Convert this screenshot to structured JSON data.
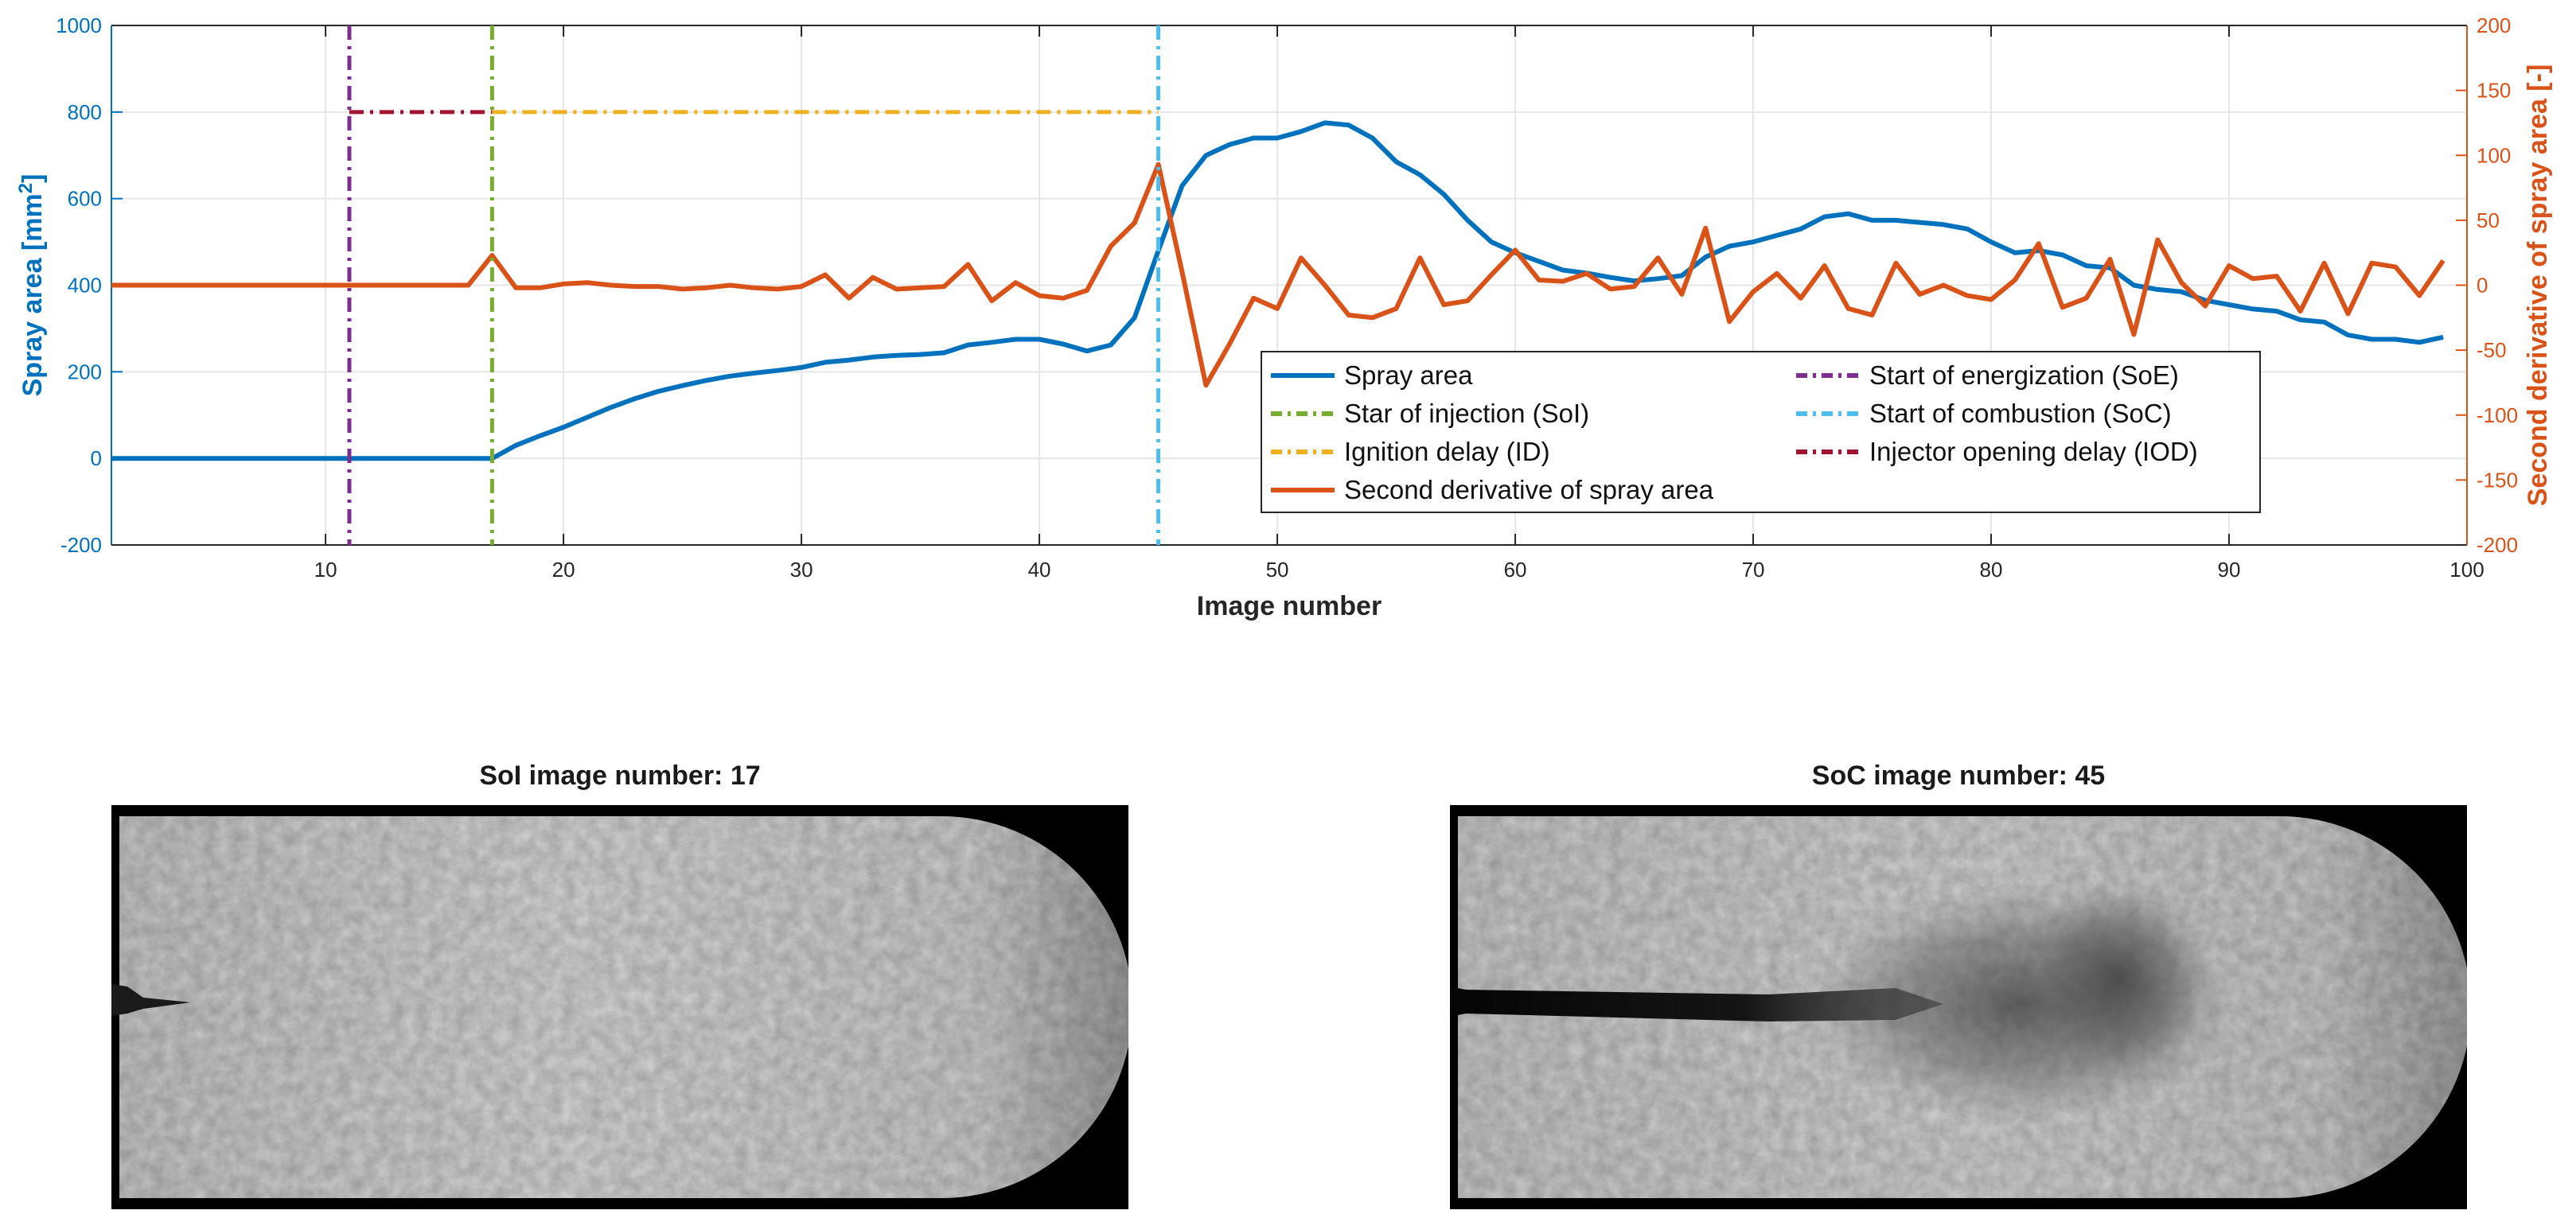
{
  "chart_data": {
    "type": "line",
    "xlabel": "Image number",
    "ylabel_left_prefix": "Spray area [mm",
    "ylabel_left_sup": "2",
    "ylabel_left_suffix": "]",
    "ylabel_right": "Second derivative of spray area [-]",
    "xlim": [
      1,
      100
    ],
    "ylim_left": [
      -200,
      1000
    ],
    "ylim_right": [
      -200,
      200
    ],
    "xticks": [
      10,
      20,
      30,
      40,
      50,
      60,
      70,
      80,
      90,
      100
    ],
    "xtick_labels": [
      "10",
      "20",
      "30",
      "40",
      "50",
      "60",
      "70",
      "80",
      "90",
      "100"
    ],
    "yticks_left": [
      -200,
      0,
      200,
      400,
      600,
      800,
      1000
    ],
    "ytick_labels_left": [
      "-200",
      "0",
      "200",
      "400",
      "600",
      "800",
      "1000"
    ],
    "yticks_right": [
      -200,
      -150,
      -100,
      -50,
      0,
      50,
      100,
      150,
      200
    ],
    "ytick_labels_right": [
      "-200",
      "-150",
      "-100",
      "-50",
      "0",
      "50",
      "100",
      "150",
      "200"
    ],
    "grid": true,
    "colors": {
      "spray": "#0072BD",
      "deriv": "#D95319",
      "soe": "#7E2F8E",
      "soi": "#77AC30",
      "soc": "#4DBEEE",
      "id": "#EDB120",
      "iod": "#A2142F",
      "left_axis": "#0072BD",
      "right_axis": "#D95319",
      "axis_text": "#262626"
    },
    "series": [
      {
        "name": "Spray area",
        "axis": "left",
        "x_start": 1,
        "values": [
          0,
          0,
          0,
          0,
          0,
          0,
          0,
          0,
          0,
          0,
          0,
          0,
          0,
          0,
          0,
          0,
          0,
          30,
          52,
          72,
          95,
          118,
          138,
          155,
          168,
          180,
          190,
          197,
          203,
          210,
          222,
          227,
          234,
          238,
          240,
          244,
          262,
          268,
          275,
          275,
          264,
          248,
          262,
          325,
          480,
          630,
          700,
          725,
          740,
          740,
          755,
          775,
          770,
          740,
          685,
          655,
          610,
          550,
          500,
          475,
          455,
          435,
          428,
          418,
          410,
          415,
          422,
          465,
          490,
          500,
          515,
          530,
          558,
          565,
          550,
          550,
          545,
          540,
          530,
          500,
          475,
          480,
          470,
          445,
          440,
          400,
          390,
          385,
          365,
          355,
          345,
          340,
          320,
          315,
          285,
          275,
          275,
          268,
          280
        ]
      },
      {
        "name": "Second derivative of spray area",
        "axis": "right",
        "x_start": 1,
        "values": [
          0,
          0,
          0,
          0,
          0,
          0,
          0,
          0,
          0,
          0,
          0,
          0,
          0,
          0,
          0,
          0,
          23,
          -2,
          -2,
          1,
          2,
          0,
          -1,
          -1,
          -3,
          -2,
          0,
          -2,
          -3,
          -1,
          8,
          -10,
          6,
          -3,
          -2,
          -1,
          16,
          -12,
          2,
          -8,
          -10,
          -4,
          30,
          48,
          93,
          10,
          -77,
          -45,
          -10,
          -18,
          21,
          0,
          -23,
          -25,
          -18,
          21,
          -15,
          -12,
          8,
          27,
          4,
          3,
          9,
          -3,
          -1,
          21,
          -7,
          44,
          -28,
          -5,
          9,
          -10,
          15,
          -18,
          -23,
          17,
          -7,
          0,
          -8,
          -11,
          4,
          32,
          -17,
          -10,
          20,
          -38,
          35,
          2,
          -16,
          15,
          5,
          7,
          -20,
          17,
          -22,
          17,
          14,
          -8,
          19
        ]
      }
    ],
    "events": [
      {
        "name": "Start of energization (SoE)",
        "x": 11,
        "color_key": "soe"
      },
      {
        "name": "Star of injection (SoI)",
        "x": 17,
        "color_key": "soi"
      },
      {
        "name": "Start of combustion (SoC)",
        "x": 45,
        "color_key": "soc"
      }
    ],
    "delays": [
      {
        "name": "Injector opening delay (IOD)",
        "x0": 11,
        "x1": 17,
        "y": 800,
        "color_key": "iod"
      },
      {
        "name": "Ignition delay (ID)",
        "x0": 17,
        "x1": 45,
        "y": 800,
        "color_key": "id"
      }
    ],
    "legend": {
      "position": "inside-center-bottom",
      "entries": [
        {
          "label": "Spray area",
          "color_key": "spray",
          "style": "solid"
        },
        {
          "label": "Start of energization (SoE)",
          "color_key": "soe",
          "style": "dashdot"
        },
        {
          "label": "Star of injection (SoI)",
          "color_key": "soi",
          "style": "dashdot"
        },
        {
          "label": "Start of combustion (SoC)",
          "color_key": "soc",
          "style": "dashdot"
        },
        {
          "label": "Ignition delay (ID)",
          "color_key": "id",
          "style": "dashdot"
        },
        {
          "label": "Injector opening delay (IOD)",
          "color_key": "iod",
          "style": "dashdot"
        },
        {
          "label": "Second derivative of spray area",
          "color_key": "deriv",
          "style": "solid"
        }
      ]
    }
  },
  "panels": {
    "left_title": "SoI image number: 17",
    "right_title": "SoC image number: 45"
  }
}
